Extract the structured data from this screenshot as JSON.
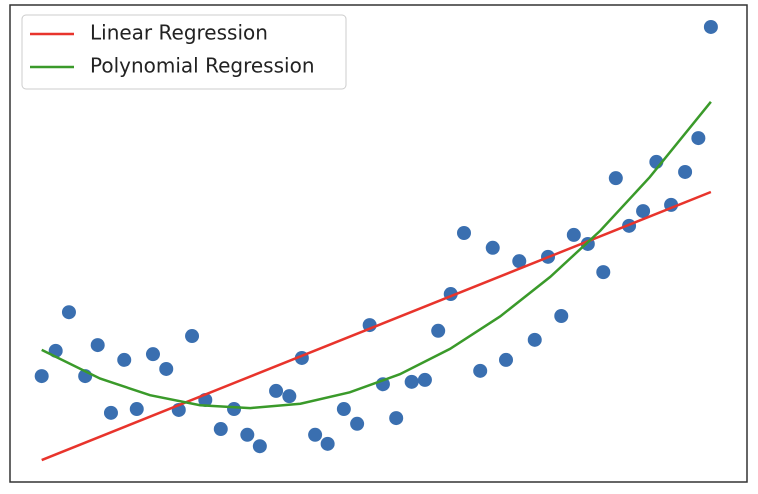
{
  "chart_data": {
    "type": "scatter",
    "xlim": [
      0,
      100
    ],
    "ylim": [
      0,
      100
    ],
    "legend": "upper left",
    "series": [
      {
        "type": "scatter",
        "color": "#3a6fb0",
        "x": [
          4.3,
          6.2,
          8.0,
          10.2,
          11.9,
          13.7,
          15.5,
          17.2,
          19.4,
          21.2,
          22.9,
          24.7,
          26.5,
          28.6,
          30.4,
          32.2,
          33.9,
          36.1,
          37.9,
          39.6,
          41.4,
          43.1,
          45.3,
          47.1,
          48.8,
          50.6,
          52.4,
          54.5,
          56.3,
          58.1,
          59.8,
          61.6,
          63.8,
          65.5,
          67.3,
          69.1,
          71.2,
          73.0,
          74.8,
          76.5,
          78.4,
          80.5,
          82.2,
          84.0,
          85.9,
          87.7,
          89.7,
          91.6,
          93.4,
          95.1
        ],
        "values": [
          22.2,
          27.5,
          35.6,
          22.2,
          28.7,
          14.5,
          25.6,
          15.3,
          26.8,
          23.7,
          15.1,
          30.6,
          17.2,
          11.1,
          15.3,
          9.9,
          7.5,
          19.1,
          18.0,
          26.0,
          9.9,
          8.0,
          15.3,
          12.2,
          32.9,
          20.5,
          13.4,
          21.0,
          21.4,
          31.7,
          39.4,
          52.2,
          23.3,
          49.1,
          25.6,
          46.3,
          29.8,
          47.2,
          34.8,
          51.8,
          49.9,
          44.0,
          63.7,
          53.7,
          56.8,
          67.1,
          58.1,
          65.0,
          72.1,
          95.4
        ]
      },
      {
        "type": "line",
        "name": "Linear Regression",
        "color": "#e8342c",
        "x": [
          4.3,
          95.1
        ],
        "values": [
          4.6,
          60.8
        ]
      },
      {
        "type": "line",
        "name": "Polynomial Regression",
        "color": "#3a9a2a",
        "x": [
          4.3,
          12.2,
          19.0,
          25.8,
          32.6,
          39.4,
          46.1,
          52.9,
          59.7,
          66.5,
          73.3,
          80.1,
          86.8,
          95.1
        ],
        "values": [
          27.7,
          21.7,
          18.2,
          16.1,
          15.5,
          16.4,
          18.8,
          22.6,
          27.9,
          34.7,
          43.0,
          52.7,
          63.9,
          79.7
        ]
      }
    ]
  }
}
